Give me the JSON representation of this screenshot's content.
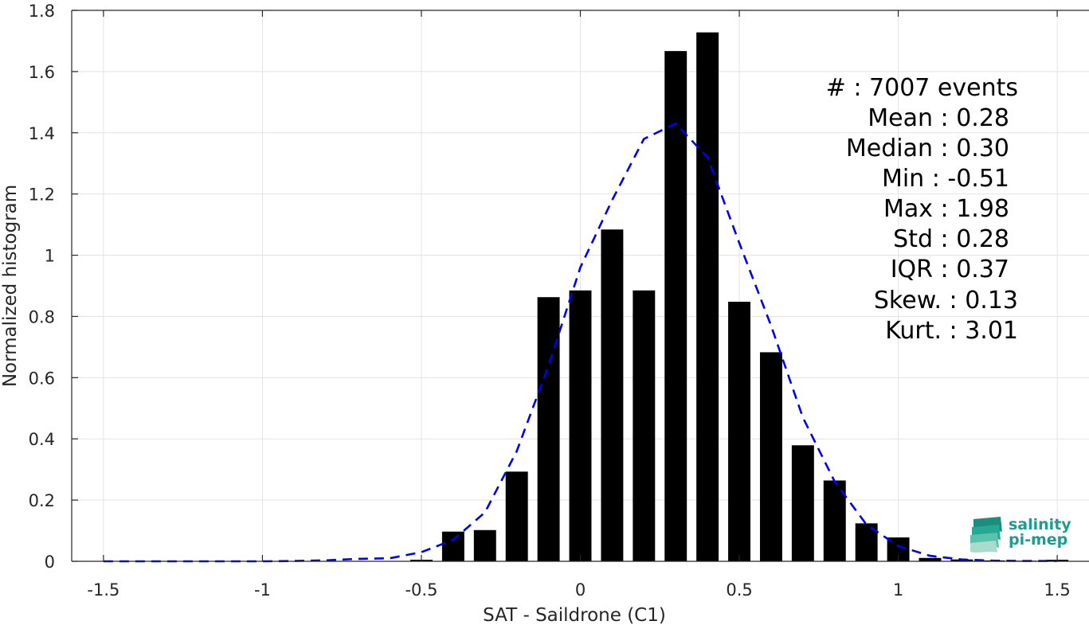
{
  "chart_data": {
    "type": "bar",
    "title": "",
    "xlabel": "SAT - Saildrone (C1)",
    "ylabel": "Normalized histogram",
    "xlim": [
      -1.6,
      1.6
    ],
    "ylim": [
      0,
      1.8
    ],
    "grid": true,
    "xticks": [
      -1.5,
      -1,
      -0.5,
      0,
      0.5,
      1,
      1.5
    ],
    "xtick_labels": [
      "-1.5",
      "-1",
      "-0.5",
      "0",
      "0.5",
      "1",
      "1.5"
    ],
    "yticks": [
      0,
      0.2,
      0.4,
      0.6,
      0.8,
      1,
      1.2,
      1.4,
      1.6,
      1.8
    ],
    "ytick_labels": [
      "0",
      "0.2",
      "0.4",
      "0.6",
      "0.8",
      "1",
      "1.2",
      "1.4",
      "1.6",
      "1.8"
    ],
    "bar_width": 0.07,
    "bar_color": "#000000",
    "bars": [
      {
        "x": -0.5,
        "value": 0.005
      },
      {
        "x": -0.4,
        "value": 0.097
      },
      {
        "x": -0.3,
        "value": 0.102
      },
      {
        "x": -0.2,
        "value": 0.293
      },
      {
        "x": -0.1,
        "value": 0.863
      },
      {
        "x": 0.0,
        "value": 0.885
      },
      {
        "x": 0.1,
        "value": 1.084
      },
      {
        "x": 0.2,
        "value": 0.885
      },
      {
        "x": 0.3,
        "value": 1.667
      },
      {
        "x": 0.4,
        "value": 1.728
      },
      {
        "x": 0.5,
        "value": 0.848
      },
      {
        "x": 0.6,
        "value": 0.683
      },
      {
        "x": 0.7,
        "value": 0.379
      },
      {
        "x": 0.8,
        "value": 0.264
      },
      {
        "x": 0.9,
        "value": 0.124
      },
      {
        "x": 1.0,
        "value": 0.078
      },
      {
        "x": 1.1,
        "value": 0.011
      },
      {
        "x": 1.2,
        "value": 0.006
      },
      {
        "x": 1.3,
        "value": 0.003
      },
      {
        "x": 1.4,
        "value": 0.002
      },
      {
        "x": 1.5,
        "value": 0.005
      }
    ],
    "fit_curve": {
      "style": "dashed",
      "color": "#0000ee",
      "x": [
        -1.5,
        -1.4,
        -1.3,
        -1.2,
        -1.1,
        -1.0,
        -0.9,
        -0.8,
        -0.7,
        -0.6,
        -0.5,
        -0.4,
        -0.3,
        -0.2,
        -0.1,
        0.0,
        0.1,
        0.2,
        0.3,
        0.4,
        0.5,
        0.6,
        0.7,
        0.8,
        0.9,
        1.0,
        1.1,
        1.2,
        1.3,
        1.4,
        1.5
      ],
      "y": [
        0,
        0,
        0,
        0,
        0,
        0,
        0.001,
        0.003,
        0.008,
        0.01,
        0.03,
        0.07,
        0.16,
        0.36,
        0.64,
        0.96,
        1.18,
        1.38,
        1.43,
        1.32,
        1.04,
        0.77,
        0.47,
        0.26,
        0.12,
        0.05,
        0.018,
        0.006,
        0.002,
        0.001,
        0.001
      ]
    }
  },
  "stats": [
    {
      "label": "#  : 7007 events"
    },
    {
      "label": "Mean : 0.28"
    },
    {
      "label": "Median : 0.30"
    },
    {
      "label": "Min : -0.51"
    },
    {
      "label": "Max : 1.98"
    },
    {
      "label": "Std : 0.28"
    },
    {
      "label": "IQR : 0.37"
    },
    {
      "label": "Skew. : 0.13"
    },
    {
      "label": "Kurt. : 3.01"
    }
  ],
  "logo": {
    "line1": "salinity",
    "line2": "pi-mep",
    "color": "#1a9e8f"
  }
}
